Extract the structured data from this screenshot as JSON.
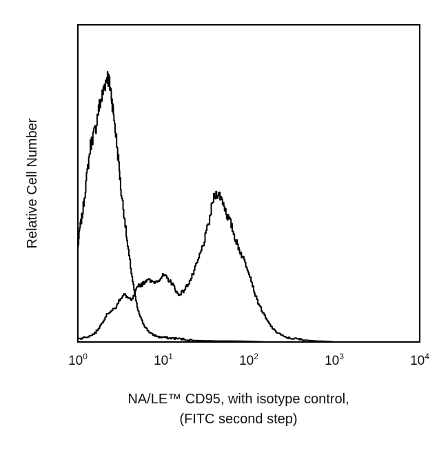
{
  "chart_data": {
    "type": "line",
    "xscale": "log",
    "xlim": [
      1,
      10000
    ],
    "ylim": [
      0,
      100
    ],
    "grid": false,
    "legend": "none",
    "xlabel_lines": [
      "NA/LE™ CD95, with isotype control,",
      "(FITC second step)"
    ],
    "ylabel": "Relative Cell Number",
    "yticks": "none",
    "xticks": [
      {
        "value": 1,
        "base": "10",
        "exp": "0"
      },
      {
        "value": 10,
        "base": "10",
        "exp": "1"
      },
      {
        "value": 100,
        "base": "10",
        "exp": "2"
      },
      {
        "value": 1000,
        "base": "10",
        "exp": "3"
      },
      {
        "value": 10000,
        "base": "10",
        "exp": "4"
      }
    ],
    "series": [
      {
        "color": "#000000",
        "x": [
          1.0,
          1.05,
          1.12,
          1.2,
          1.3,
          1.4,
          1.5,
          1.6,
          1.7,
          1.8,
          1.9,
          2.0,
          2.1,
          2.2,
          2.3,
          2.4,
          2.5,
          2.6,
          2.8,
          3.0,
          3.2,
          3.5,
          3.8,
          4.2,
          4.6,
          5.0,
          5.5,
          6.0,
          6.6,
          7.2,
          8.0,
          9.0,
          10.0,
          11.5,
          13.0,
          15.0,
          18.0,
          22.0,
          30.0,
          40.0,
          60.0,
          100.0,
          150.0
        ],
        "values": [
          30,
          36,
          40,
          47,
          55,
          62,
          65,
          67,
          72,
          75,
          77,
          80,
          82,
          84,
          82,
          80,
          76,
          72,
          64,
          56,
          47,
          39,
          30,
          22,
          15,
          10,
          7,
          5,
          3.5,
          2.5,
          2,
          1.5,
          1.5,
          1.2,
          1.2,
          1.0,
          0.8,
          0.5,
          0.4,
          0.3,
          0.3,
          0.2,
          0
        ]
      },
      {
        "color": "#000000",
        "x": [
          1.0,
          1.2,
          1.4,
          1.6,
          1.8,
          2.0,
          2.2,
          2.5,
          2.8,
          3.0,
          3.2,
          3.5,
          3.8,
          4.2,
          4.6,
          5.0,
          5.5,
          6.0,
          6.5,
          7.0,
          8.0,
          9.0,
          10.0,
          11.0,
          12.0,
          13.0,
          14.0,
          15.0,
          17.0,
          19.0,
          21.0,
          24.0,
          27.0,
          30.0,
          34.0,
          38.0,
          42.0,
          46.0,
          50.0,
          55.0,
          60.0,
          65.0,
          70.0,
          75.0,
          80.0,
          90.0,
          100.0,
          110.0,
          120.0,
          140.0,
          160.0,
          180.0,
          200.0,
          230.0,
          260.0,
          300.0,
          350.0,
          400.0,
          450.0,
          500.0,
          600.0,
          800.0,
          1000.0
        ],
        "values": [
          1,
          1.5,
          2,
          3,
          5,
          7,
          9,
          10,
          11,
          13,
          14,
          15,
          14,
          13,
          15,
          18,
          18,
          19,
          20,
          19,
          19,
          20,
          21,
          20,
          19,
          18,
          16,
          15,
          16,
          18,
          20,
          24,
          28,
          32,
          38,
          45,
          47,
          46,
          44,
          40,
          38,
          35,
          32,
          30,
          28,
          25,
          22,
          18,
          14,
          10,
          7,
          5,
          3.5,
          2.5,
          1.5,
          1.2,
          1.0,
          0.8,
          0.6,
          0.5,
          0.3,
          0.2,
          0
        ]
      }
    ]
  }
}
